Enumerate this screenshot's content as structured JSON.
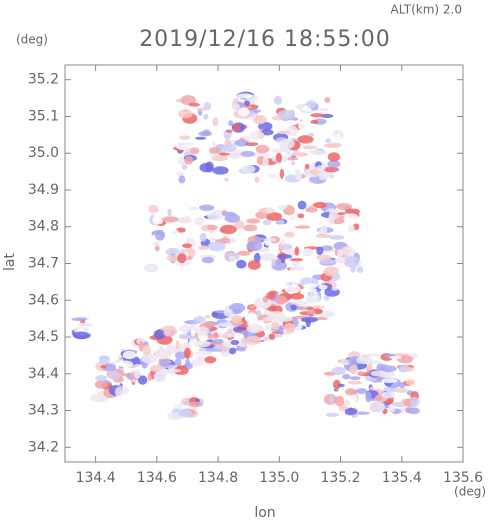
{
  "chart_data": {
    "type": "map",
    "title": "2019/12/16 18:55:00",
    "altitude_label": "ALT(km)  2.0",
    "y_unit": "(deg)",
    "x_unit": "(deg)",
    "x_label": "lon",
    "y_label": "lat",
    "xlim": [
      134.3,
      135.6
    ],
    "ylim": [
      34.16,
      35.24
    ],
    "xticks": [
      134.4,
      134.6,
      134.8,
      {
        "value": 135.0,
        "label": "135.0"
      },
      135.2,
      135.4,
      135.6
    ],
    "yticks": [
      34.2,
      34.3,
      34.4,
      34.5,
      34.6,
      34.7,
      34.8,
      34.9,
      {
        "value": 35.0,
        "label": "35.0"
      },
      35.1,
      35.2
    ]
  }
}
